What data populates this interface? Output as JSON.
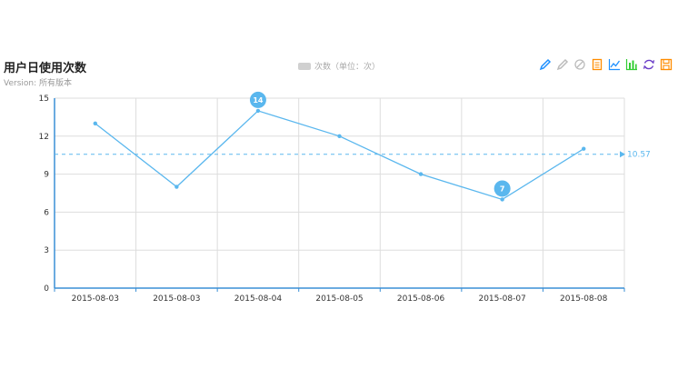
{
  "header": {
    "title": "用户日使用次数",
    "subtitle": "Version: 所有版本"
  },
  "legend": {
    "label": "次数（单位：次）",
    "swatch_color": "#d0d0d0"
  },
  "toolbox": {
    "icons": [
      "mark-pen-icon",
      "mark-undo-icon",
      "mark-clear-icon",
      "data-view-icon",
      "line-chart-icon",
      "bar-chart-icon",
      "restore-icon",
      "save-image-icon"
    ],
    "colors": [
      "#1e90ff",
      "#bbbbbb",
      "#bbbbbb",
      "#ff8c00",
      "#1e90ff",
      "#32cd32",
      "#6a3dc8",
      "#ff8c00"
    ]
  },
  "chart_data": {
    "type": "line",
    "categories": [
      "2015-08-03",
      "2015-08-03",
      "2015-08-04",
      "2015-08-05",
      "2015-08-06",
      "2015-08-07",
      "2015-08-08"
    ],
    "series": [
      {
        "values": [
          13,
          8,
          14,
          12,
          9,
          7,
          11
        ],
        "color": "#5ab7ee"
      }
    ],
    "ylim": [
      0,
      15
    ],
    "yticks": [
      0,
      3,
      6,
      9,
      12,
      15
    ],
    "mark_points": [
      {
        "label": "14",
        "index": 2,
        "value": 14
      },
      {
        "label": "7",
        "index": 5,
        "value": 7
      }
    ],
    "mark_line": {
      "value": 10.57,
      "label": "10.57"
    },
    "grid": true,
    "legend_position": "top-center",
    "axis_color": "#3a8fd6"
  }
}
